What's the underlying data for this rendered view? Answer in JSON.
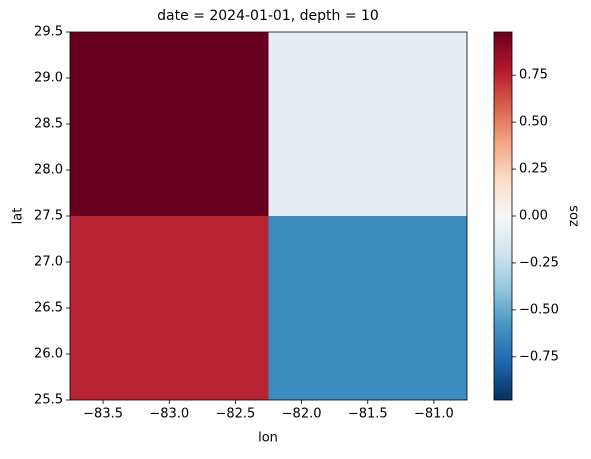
{
  "chart_data": {
    "type": "heatmap",
    "title": "date = 2024-01-01, depth = 10",
    "xlabel": "lon",
    "ylabel": "lat",
    "x": [
      -83.0,
      -81.5
    ],
    "y": [
      26.5,
      28.5
    ],
    "z": [
      [
        0.75,
        -0.62
      ],
      [
        0.98,
        -0.1
      ]
    ],
    "xlim": [
      -83.75,
      -80.75
    ],
    "xticks": [
      {
        "value": -83.5,
        "label": "−83.5"
      },
      {
        "value": -83.0,
        "label": "−83.0"
      },
      {
        "value": -82.5,
        "label": "−82.5"
      },
      {
        "value": -82.0,
        "label": "−82.0"
      },
      {
        "value": -81.5,
        "label": "−81.5"
      },
      {
        "value": -81.0,
        "label": "−81.0"
      }
    ],
    "ylim": [
      25.5,
      29.5
    ],
    "yticks": [
      25.5,
      {
        "value": 26,
        "label": "26.0"
      },
      26.5,
      {
        "value": 27,
        "label": "27.0"
      },
      27.5,
      {
        "value": 28,
        "label": "28.0"
      },
      28.5,
      {
        "value": 29,
        "label": "29.0"
      },
      29.5
    ],
    "colormap": "RdBu_r",
    "colorbar": {
      "label": "zos",
      "lim": [
        -0.98,
        0.98
      ],
      "ticks": [
        {
          "value": -0.75,
          "label": "−0.75"
        },
        {
          "value": -0.5,
          "label": "−0.50"
        },
        {
          "value": -0.25,
          "label": "−0.25"
        },
        {
          "value": 0,
          "label": "0.00"
        },
        0.25,
        {
          "value": 0.5,
          "label": "0.50"
        },
        0.75
      ]
    }
  }
}
